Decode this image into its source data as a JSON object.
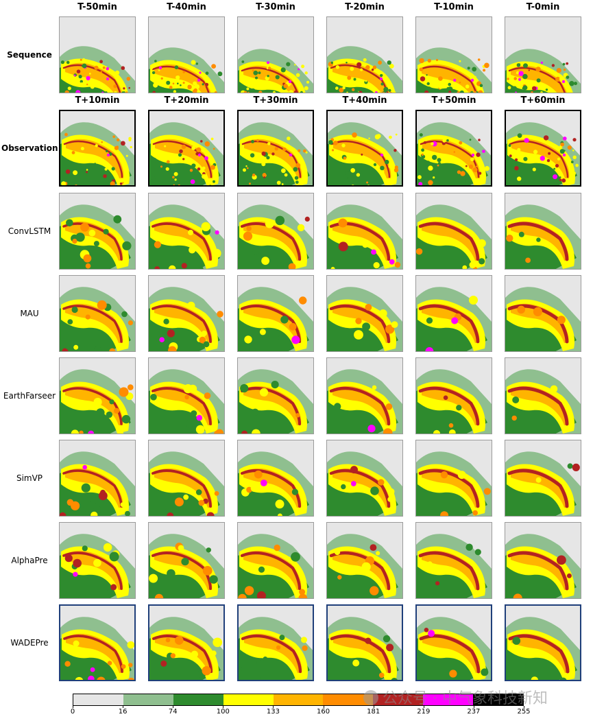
{
  "col_headers_top": [
    "T-50min",
    "T-40min",
    "T-30min",
    "T-20min",
    "T-10min",
    "T-0min"
  ],
  "col_headers_pred": [
    "T+10min",
    "T+20min",
    "T+30min",
    "T+40min",
    "T+50min",
    "T+60min"
  ],
  "rows": [
    {
      "label": "Sequence",
      "bold": true,
      "kind": "input"
    },
    {
      "label": "Observation",
      "bold": true,
      "kind": "obs"
    },
    {
      "label": "ConvLSTM",
      "bold": false,
      "kind": "model"
    },
    {
      "label": "MAU",
      "bold": false,
      "kind": "model"
    },
    {
      "label": "EarthFarseer",
      "bold": false,
      "kind": "model"
    },
    {
      "label": "SimVP",
      "bold": false,
      "kind": "model"
    },
    {
      "label": "AlphaPre",
      "bold": false,
      "kind": "model"
    },
    {
      "label": "WADEPre",
      "bold": false,
      "kind": "ours"
    }
  ],
  "colorbar": {
    "ticks": [
      "0",
      "16",
      "74",
      "100",
      "133",
      "160",
      "181",
      "219",
      "237",
      "255"
    ],
    "colors": [
      "#e6e6e6",
      "#8fbf8f",
      "#2e8b2e",
      "#ffff00",
      "#ffb400",
      "#ff8c00",
      "#b22222",
      "#ff00ff",
      "#000000"
    ]
  },
  "watermark": "公众号 · 中气象科技新知"
}
